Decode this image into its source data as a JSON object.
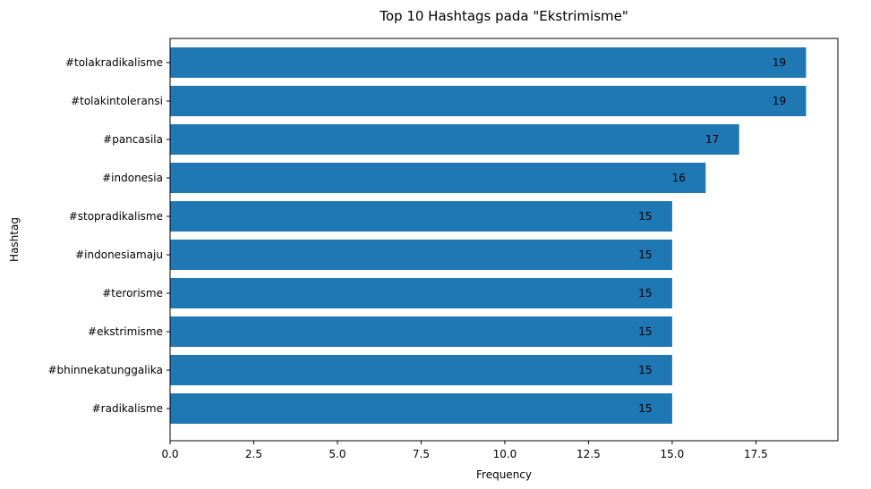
{
  "chart_data": {
    "type": "bar",
    "orientation": "horizontal",
    "title": "Top 10 Hashtags pada \"Ekstrimisme\"",
    "xlabel": "Frequency",
    "ylabel": "Hashtag",
    "categories": [
      "#tolakradikalisme",
      "#tolakintoleransi",
      "#pancasila",
      "#indonesia",
      "#stopradikalisme",
      "#indonesiamaju",
      "#terorisme",
      "#ekstrimisme",
      "#bhinnekatunggalika",
      "#radikalisme"
    ],
    "values": [
      19,
      19,
      17,
      16,
      15,
      15,
      15,
      15,
      15,
      15
    ],
    "data_labels": [
      "19",
      "19",
      "17",
      "16",
      "15",
      "15",
      "15",
      "15",
      "15",
      "15"
    ],
    "xticks": [
      0,
      2.5,
      5,
      7.5,
      10,
      12.5,
      15,
      17.5
    ],
    "xtick_labels": [
      "0.0",
      "2.5",
      "5.0",
      "7.5",
      "10.0",
      "12.5",
      "15.0",
      "17.5"
    ],
    "xlim": [
      0,
      19.95
    ],
    "grid": false,
    "bar_color": "#1f77b4"
  }
}
